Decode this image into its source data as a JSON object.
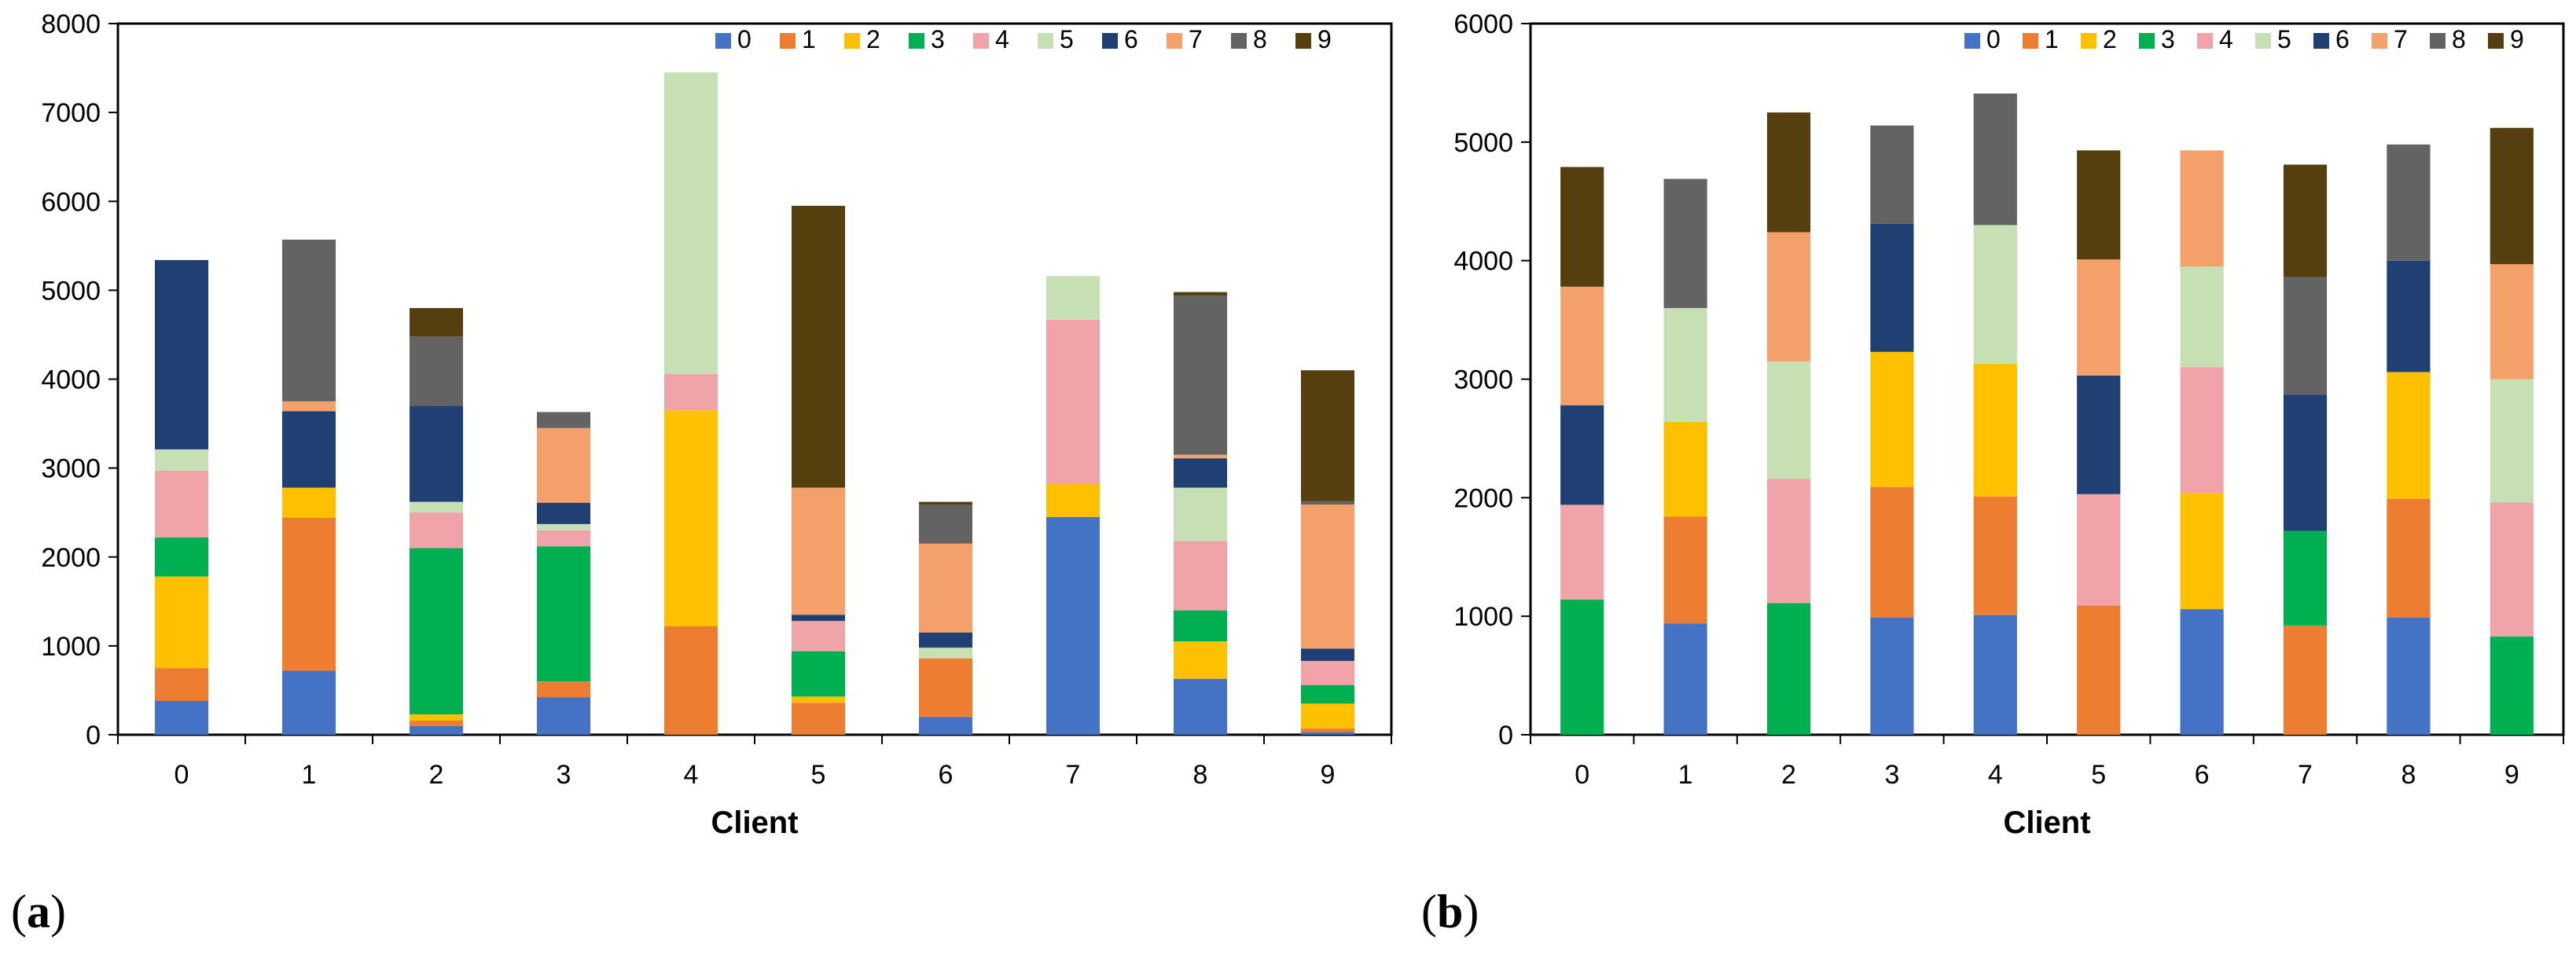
{
  "colors": [
    "#4472C4",
    "#ED7D31",
    "#FFC000",
    "#00B050",
    "#F0A3A8",
    "#C6E0B4",
    "#203F73",
    "#F4A06A",
    "#636363",
    "#553F0E"
  ],
  "chart_data": [
    {
      "type": "bar",
      "stacked": true,
      "panel_label": "a",
      "xlabel": "Client",
      "ylabel": "",
      "ylim": [
        0,
        8000
      ],
      "yticks": [
        "0",
        "1000",
        "2000",
        "3000",
        "4000",
        "5000",
        "6000",
        "7000",
        "8000"
      ],
      "categories": [
        "0",
        "1",
        "2",
        "3",
        "4",
        "5",
        "6",
        "7",
        "8",
        "9"
      ],
      "legend_position": "top-right",
      "series": [
        {
          "name": "0",
          "values": [
            380,
            720,
            100,
            420,
            0,
            0,
            200,
            2450,
            630,
            30
          ]
        },
        {
          "name": "1",
          "values": [
            370,
            1720,
            60,
            180,
            1220,
            360,
            660,
            0,
            0,
            40
          ]
        },
        {
          "name": "2",
          "values": [
            1030,
            340,
            70,
            0,
            2430,
            70,
            0,
            370,
            420,
            280
          ]
        },
        {
          "name": "3",
          "values": [
            440,
            0,
            1870,
            1520,
            0,
            510,
            0,
            0,
            350,
            210
          ]
        },
        {
          "name": "4",
          "values": [
            750,
            0,
            400,
            180,
            410,
            340,
            0,
            1850,
            780,
            270
          ]
        },
        {
          "name": "5",
          "values": [
            240,
            0,
            120,
            70,
            3390,
            0,
            120,
            490,
            600,
            0
          ]
        },
        {
          "name": "6",
          "values": [
            2130,
            860,
            1080,
            240,
            0,
            70,
            170,
            0,
            330,
            140
          ]
        },
        {
          "name": "7",
          "values": [
            0,
            110,
            0,
            840,
            0,
            1430,
            1000,
            0,
            40,
            1620
          ]
        },
        {
          "name": "8",
          "values": [
            0,
            1820,
            780,
            180,
            0,
            0,
            440,
            0,
            1790,
            40
          ]
        },
        {
          "name": "9",
          "values": [
            0,
            0,
            320,
            0,
            0,
            3170,
            30,
            0,
            40,
            1470
          ]
        }
      ]
    },
    {
      "type": "bar",
      "stacked": true,
      "panel_label": "b",
      "xlabel": "Client",
      "ylabel": "",
      "ylim": [
        0,
        6000
      ],
      "yticks": [
        "0",
        "1000",
        "2000",
        "3000",
        "4000",
        "5000",
        "6000"
      ],
      "categories": [
        "0",
        "1",
        "2",
        "3",
        "4",
        "5",
        "6",
        "7",
        "8",
        "9"
      ],
      "legend_position": "top-right",
      "series": [
        {
          "name": "0",
          "values": [
            0,
            940,
            0,
            990,
            1010,
            0,
            1060,
            0,
            990,
            0
          ]
        },
        {
          "name": "1",
          "values": [
            0,
            900,
            0,
            1100,
            1000,
            1090,
            0,
            920,
            1000,
            0
          ]
        },
        {
          "name": "2",
          "values": [
            0,
            800,
            0,
            1140,
            1120,
            0,
            980,
            0,
            1070,
            0
          ]
        },
        {
          "name": "3",
          "values": [
            1140,
            0,
            1110,
            0,
            0,
            0,
            0,
            800,
            0,
            830
          ]
        },
        {
          "name": "4",
          "values": [
            800,
            0,
            1050,
            0,
            0,
            940,
            1060,
            0,
            0,
            1130
          ]
        },
        {
          "name": "5",
          "values": [
            0,
            960,
            990,
            0,
            1170,
            0,
            850,
            0,
            0,
            1040
          ]
        },
        {
          "name": "6",
          "values": [
            840,
            0,
            0,
            1080,
            0,
            1000,
            0,
            1150,
            940,
            0
          ]
        },
        {
          "name": "7",
          "values": [
            1000,
            0,
            1090,
            0,
            0,
            980,
            980,
            0,
            0,
            970
          ]
        },
        {
          "name": "8",
          "values": [
            0,
            1090,
            0,
            830,
            1110,
            0,
            0,
            990,
            980,
            0
          ]
        },
        {
          "name": "9",
          "values": [
            1010,
            0,
            1010,
            0,
            0,
            920,
            0,
            950,
            0,
            1150
          ]
        }
      ]
    }
  ]
}
